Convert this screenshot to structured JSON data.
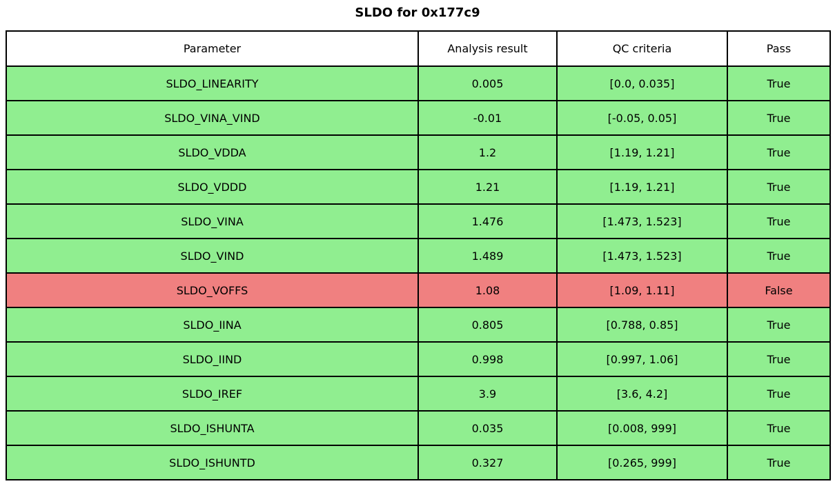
{
  "title": "SLDO for 0x177c9",
  "colors": {
    "pass_green": "#90ee90",
    "fail_red": "#f08080",
    "border": "#000000",
    "header_bg": "#ffffff"
  },
  "chart_data": {
    "type": "table",
    "title": "SLDO for 0x177c9",
    "columns": [
      "Parameter",
      "Analysis result",
      "QC criteria",
      "Pass"
    ],
    "rows": [
      {
        "parameter": "SLDO_LINEARITY",
        "analysis_result": "0.005",
        "qc_criteria": "[0.0, 0.035]",
        "pass": "True"
      },
      {
        "parameter": "SLDO_VINA_VIND",
        "analysis_result": "-0.01",
        "qc_criteria": "[-0.05, 0.05]",
        "pass": "True"
      },
      {
        "parameter": "SLDO_VDDA",
        "analysis_result": "1.2",
        "qc_criteria": "[1.19, 1.21]",
        "pass": "True"
      },
      {
        "parameter": "SLDO_VDDD",
        "analysis_result": "1.21",
        "qc_criteria": "[1.19, 1.21]",
        "pass": "True"
      },
      {
        "parameter": "SLDO_VINA",
        "analysis_result": "1.476",
        "qc_criteria": "[1.473, 1.523]",
        "pass": "True"
      },
      {
        "parameter": "SLDO_VIND",
        "analysis_result": "1.489",
        "qc_criteria": "[1.473, 1.523]",
        "pass": "True"
      },
      {
        "parameter": "SLDO_VOFFS",
        "analysis_result": "1.08",
        "qc_criteria": "[1.09, 1.11]",
        "pass": "False"
      },
      {
        "parameter": "SLDO_IINA",
        "analysis_result": "0.805",
        "qc_criteria": "[0.788, 0.85]",
        "pass": "True"
      },
      {
        "parameter": "SLDO_IIND",
        "analysis_result": "0.998",
        "qc_criteria": "[0.997, 1.06]",
        "pass": "True"
      },
      {
        "parameter": "SLDO_IREF",
        "analysis_result": "3.9",
        "qc_criteria": "[3.6, 4.2]",
        "pass": "True"
      },
      {
        "parameter": "SLDO_ISHUNTA",
        "analysis_result": "0.035",
        "qc_criteria": "[0.008, 999]",
        "pass": "True"
      },
      {
        "parameter": "SLDO_ISHUNTD",
        "analysis_result": "0.327",
        "qc_criteria": "[0.265, 999]",
        "pass": "True"
      }
    ]
  }
}
